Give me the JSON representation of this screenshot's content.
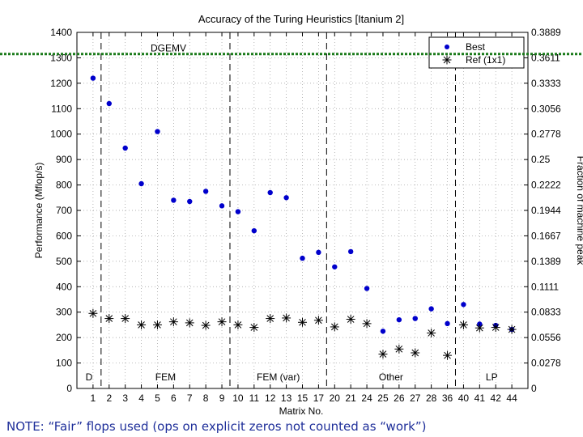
{
  "chart_data": {
    "type": "scatter",
    "title": "Accuracy of the Turing Heuristics [Itanium 2]",
    "xlabel": "Matrix No.",
    "ylabel": "Performance (Mflop/s)",
    "y2label": "Fraction of machine peak",
    "categories": [
      "1",
      "2",
      "3",
      "4",
      "5",
      "6",
      "7",
      "8",
      "9",
      "10",
      "11",
      "12",
      "13",
      "15",
      "17",
      "20",
      "21",
      "24",
      "25",
      "26",
      "27",
      "28",
      "36",
      "40",
      "41",
      "42",
      "44"
    ],
    "ylim": [
      0,
      1400
    ],
    "yticks": [
      0,
      100,
      200,
      300,
      400,
      500,
      600,
      700,
      800,
      900,
      1000,
      1100,
      1200,
      1300,
      1400
    ],
    "y2ticks": [
      "0",
      "0.0278",
      "0.0556",
      "0.0833",
      "0.1111",
      "0.1389",
      "0.1667",
      "0.1944",
      "0.2222",
      "0.25",
      "0.2778",
      "0.3056",
      "0.3333",
      "0.3611",
      "0.3889"
    ],
    "grid": true,
    "legend_position": "top-right",
    "series": [
      {
        "name": "Best",
        "marker": "dot",
        "color": "#0000cc",
        "values": [
          1220,
          1120,
          945,
          805,
          1010,
          740,
          735,
          775,
          718,
          695,
          620,
          770,
          750,
          512,
          535,
          478,
          538,
          393,
          225,
          270,
          275,
          313,
          255,
          330,
          253,
          248,
          232
        ]
      },
      {
        "name": "Ref (1x1)",
        "marker": "star",
        "color": "#000000",
        "values": [
          295,
          275,
          275,
          250,
          250,
          262,
          258,
          248,
          262,
          250,
          240,
          275,
          277,
          260,
          268,
          242,
          272,
          255,
          135,
          155,
          140,
          218,
          130,
          250,
          238,
          240,
          232
        ]
      }
    ],
    "annotations": {
      "reference_line_label": "DGEMV",
      "reference_line_value": 1315,
      "group_boundaries_after_index": [
        0,
        8,
        14,
        22
      ],
      "groups": [
        "D",
        "FEM",
        "FEM (var)",
        "Other",
        "LP"
      ]
    }
  },
  "footer": {
    "note": "NOTE: “Fair” flops used (ops on explicit zeros not counted as “work”)"
  }
}
